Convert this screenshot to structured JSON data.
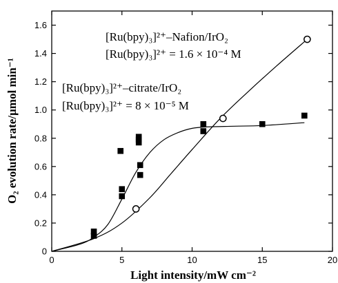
{
  "chart_data": {
    "type": "scatter",
    "xlabel": "Light intensity/mW cm⁻²",
    "ylabel": "O₂ evolution rate/µmol min⁻¹",
    "xlim": [
      0,
      20
    ],
    "ylim": [
      0,
      1.7
    ],
    "x_ticks": [
      0,
      5,
      10,
      15,
      20
    ],
    "x_tick_labels": [
      "0",
      "5",
      "10",
      "15",
      "20"
    ],
    "y_ticks": [
      0,
      0.2,
      0.4,
      0.6,
      0.8,
      1.0,
      1.2,
      1.4,
      1.6
    ],
    "y_tick_labels": [
      "0",
      "0.2",
      "0.4",
      "0.6",
      "0.8",
      "1.0",
      "1.2",
      "1.4",
      "1.6"
    ],
    "grid": false,
    "annotations": [
      {
        "id": "nafion",
        "lines": [
          "[Ru(bpy)₃]²⁺–Nafion/IrO₂",
          "[Ru(bpy)₃]²⁺ = 1.6 × 10⁻⁴ M"
        ]
      },
      {
        "id": "citrate",
        "lines": [
          "[Ru(bpy)₃]²⁺–citrate/IrO₂",
          "[Ru(bpy)₃]²⁺ = 8 × 10⁻⁵ M"
        ]
      }
    ],
    "series": [
      {
        "marker": "open-circle",
        "color": "#000000",
        "points": [
          [
            6.0,
            0.3
          ],
          [
            12.2,
            0.94
          ],
          [
            18.2,
            1.5
          ]
        ],
        "fit_curve": [
          [
            0,
            0
          ],
          [
            3,
            0.09
          ],
          [
            5,
            0.2
          ],
          [
            7,
            0.38
          ],
          [
            8.5,
            0.55
          ],
          [
            10,
            0.72
          ],
          [
            12,
            0.94
          ],
          [
            14,
            1.13
          ],
          [
            16,
            1.31
          ],
          [
            18.2,
            1.5
          ]
        ]
      },
      {
        "marker": "filled-square",
        "color": "#000000",
        "points": [
          [
            3.0,
            0.11
          ],
          [
            3.0,
            0.14
          ],
          [
            4.9,
            0.71
          ],
          [
            5.0,
            0.44
          ],
          [
            5.0,
            0.39
          ],
          [
            6.2,
            0.81
          ],
          [
            6.2,
            0.79
          ],
          [
            6.2,
            0.77
          ],
          [
            6.3,
            0.61
          ],
          [
            6.3,
            0.54
          ],
          [
            10.8,
            0.9
          ],
          [
            10.8,
            0.85
          ],
          [
            15.0,
            0.9
          ],
          [
            18.0,
            0.96
          ]
        ],
        "fit_curve": [
          [
            0,
            0
          ],
          [
            2,
            0.05
          ],
          [
            3,
            0.1
          ],
          [
            4,
            0.19
          ],
          [
            5,
            0.37
          ],
          [
            6,
            0.56
          ],
          [
            7,
            0.7
          ],
          [
            8,
            0.79
          ],
          [
            9,
            0.84
          ],
          [
            10,
            0.87
          ],
          [
            11,
            0.88
          ],
          [
            13,
            0.885
          ],
          [
            15,
            0.89
          ],
          [
            18,
            0.91
          ]
        ]
      }
    ]
  }
}
